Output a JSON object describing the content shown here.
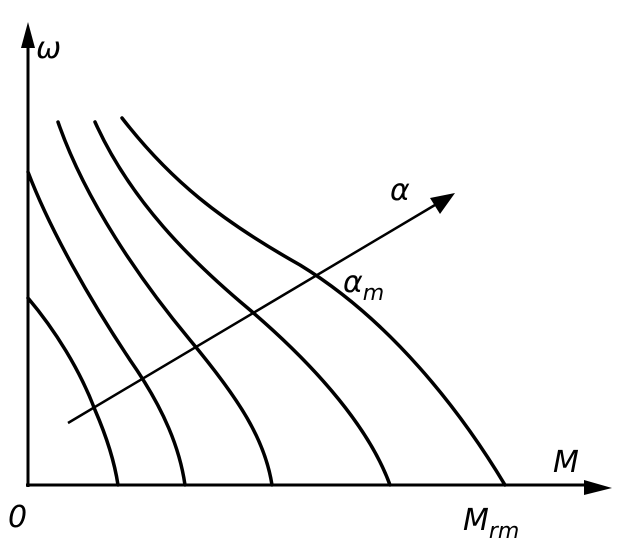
{
  "labels": {
    "y_axis": "ω",
    "x_axis": "M",
    "origin": "0",
    "alpha": "α",
    "alpha_m": {
      "main": "α",
      "sub": "m"
    },
    "m_rm": {
      "main": "M",
      "sub": "rm"
    }
  }
}
